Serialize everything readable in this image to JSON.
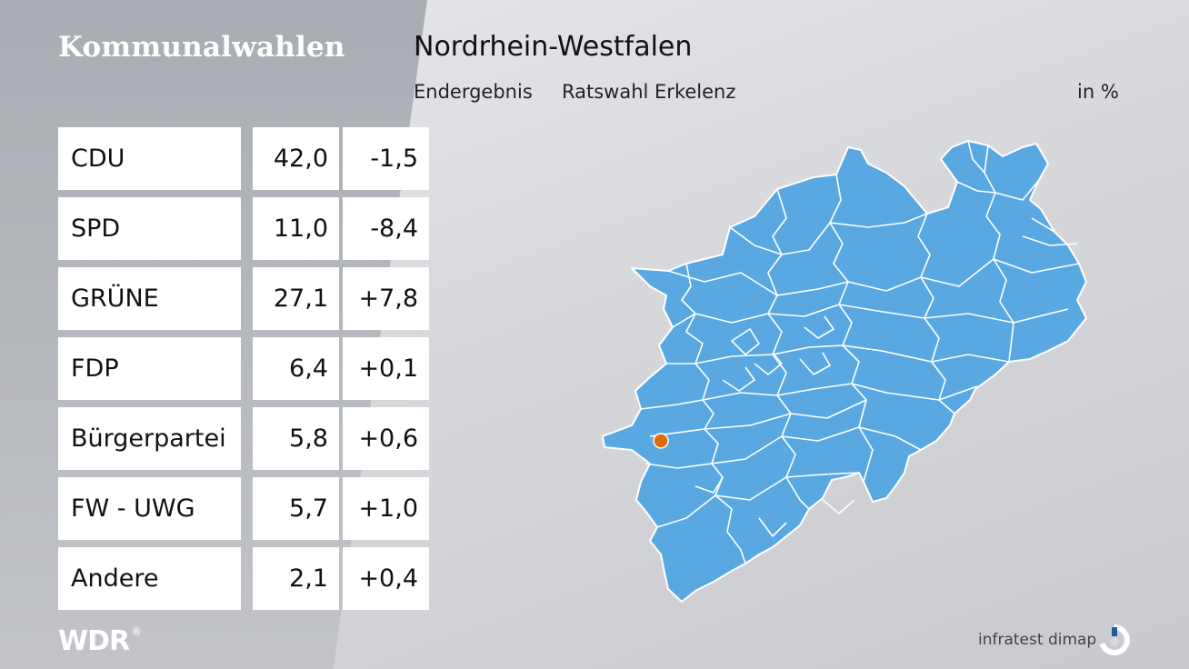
{
  "header": {
    "title": "Kommunalwahlen",
    "region": "Nordrhein-Westfalen",
    "result_type": "Endergebnis",
    "ward": "Ratswahl Erkelenz",
    "unit": "in %"
  },
  "results": [
    {
      "party": "CDU",
      "share": "42,0",
      "change": "-1,5"
    },
    {
      "party": "SPD",
      "share": "11,0",
      "change": "-8,4"
    },
    {
      "party": "GRÜNE",
      "share": "27,1",
      "change": "+7,8"
    },
    {
      "party": "FDP",
      "share": "6,4",
      "change": "+0,1"
    },
    {
      "party": "Bürgerpartei",
      "share": "5,8",
      "change": "+0,6"
    },
    {
      "party": "FW - UWG",
      "share": "5,7",
      "change": "+1,0"
    },
    {
      "party": "Andere",
      "share": "2,1",
      "change": "+0,4"
    }
  ],
  "map": {
    "fill_color": "#5aa8e2",
    "border_color": "#ffffff",
    "marker_color": "#e06a0c"
  },
  "footer": {
    "broadcaster": "WDR",
    "source": "infratest dimap"
  },
  "colors": {
    "panel_text": "#ffffff",
    "cell_background": "#ffffff"
  }
}
